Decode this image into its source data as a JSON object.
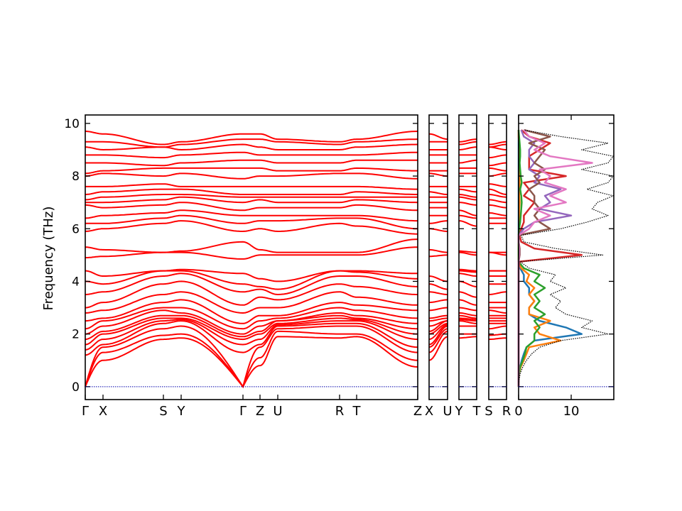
{
  "chart_data": {
    "type": "line",
    "title": "",
    "ylabel": "Frequency (THz)",
    "ylim": [
      -0.49,
      10.32
    ],
    "yticks": [
      0,
      2,
      4,
      6,
      8,
      10
    ],
    "band_color": "#ff0000",
    "zero_line_color": "#0000aa",
    "main_path": {
      "labels": [
        "Γ",
        "X",
        "S",
        "Y",
        "Γ",
        "Z",
        "U",
        "R",
        "T",
        "Z"
      ],
      "distances": [
        0,
        0.25,
        1.1,
        1.35,
        2.22,
        2.46,
        2.71,
        3.58,
        3.82,
        4.68
      ]
    },
    "side_paths": [
      {
        "labels": [
          "X",
          "U"
        ],
        "from_node": 1,
        "to_node": 6
      },
      {
        "labels": [
          "Y",
          "T"
        ],
        "from_node": 3,
        "to_node": 8
      },
      {
        "labels": [
          "S",
          "R"
        ],
        "from_node": 2,
        "to_node": 7
      }
    ],
    "bands": [
      [
        0,
        1.0,
        1.8,
        1.85,
        0,
        0.8,
        1.9,
        1.85,
        1.9,
        0.75
      ],
      [
        0,
        1.3,
        1.95,
        2.0,
        0,
        1.1,
        2.1,
        2.0,
        2.0,
        1.0
      ],
      [
        0,
        1.5,
        2.2,
        2.3,
        0,
        1.5,
        2.2,
        2.3,
        2.3,
        1.3
      ],
      [
        1.2,
        1.6,
        2.4,
        2.5,
        1.3,
        1.6,
        2.3,
        2.4,
        2.4,
        1.5
      ],
      [
        1.4,
        1.8,
        2.5,
        2.55,
        1.6,
        1.8,
        2.35,
        2.5,
        2.5,
        1.8
      ],
      [
        1.6,
        2.0,
        2.6,
        2.6,
        1.8,
        2.0,
        2.4,
        2.6,
        2.55,
        2.0
      ],
      [
        1.8,
        2.1,
        2.7,
        2.7,
        1.9,
        2.1,
        2.5,
        2.7,
        2.6,
        2.2
      ],
      [
        2.0,
        2.3,
        2.9,
        2.8,
        2.0,
        2.3,
        2.5,
        2.8,
        2.7,
        2.4
      ],
      [
        2.2,
        2.5,
        3.0,
        3.0,
        2.2,
        2.5,
        2.6,
        3.0,
        2.9,
        2.6
      ],
      [
        2.5,
        2.6,
        3.2,
        3.3,
        2.4,
        2.7,
        2.7,
        3.2,
        3.1,
        2.9
      ],
      [
        2.8,
        2.9,
        3.5,
        3.6,
        2.8,
        3.0,
        3.0,
        3.6,
        3.4,
        3.1
      ],
      [
        3.0,
        3.2,
        3.9,
        4.0,
        3.1,
        3.4,
        3.3,
        3.9,
        3.8,
        3.5
      ],
      [
        3.5,
        3.6,
        4.2,
        4.3,
        3.6,
        3.7,
        3.5,
        4.2,
        4.2,
        3.8
      ],
      [
        4.0,
        3.9,
        4.4,
        4.4,
        3.9,
        3.8,
        3.7,
        4.4,
        4.35,
        4.1
      ],
      [
        4.4,
        4.2,
        4.4,
        4.45,
        4.3,
        4.1,
        4.0,
        4.4,
        4.4,
        4.3
      ],
      [
        4.9,
        4.95,
        5.1,
        5.1,
        4.85,
        5.0,
        5.0,
        5.0,
        5.0,
        5.3
      ],
      [
        5.3,
        5.2,
        5.1,
        5.15,
        5.5,
        5.2,
        5.1,
        5.1,
        5.1,
        5.6
      ],
      [
        5.9,
        6.0,
        6.2,
        6.3,
        5.9,
        6.0,
        5.9,
        6.2,
        6.1,
        5.8
      ],
      [
        6.2,
        6.2,
        6.4,
        6.5,
        6.2,
        6.3,
        6.3,
        6.4,
        6.4,
        6.0
      ],
      [
        6.4,
        6.5,
        6.6,
        6.7,
        6.5,
        6.5,
        6.5,
        6.5,
        6.5,
        6.3
      ],
      [
        6.9,
        6.8,
        6.9,
        7.0,
        6.7,
        6.8,
        6.8,
        6.8,
        6.9,
        6.7
      ],
      [
        7.0,
        7.0,
        7.1,
        7.2,
        7.0,
        7.1,
        7.0,
        7.0,
        7.1,
        7.0
      ],
      [
        7.1,
        7.2,
        7.3,
        7.3,
        7.2,
        7.2,
        7.2,
        7.2,
        7.2,
        7.2
      ],
      [
        7.3,
        7.4,
        7.5,
        7.5,
        7.3,
        7.3,
        7.3,
        7.3,
        7.4,
        7.3
      ],
      [
        7.6,
        7.6,
        7.7,
        7.6,
        7.6,
        7.6,
        7.6,
        7.6,
        7.6,
        7.5
      ],
      [
        8.0,
        8.1,
        8.0,
        8.1,
        7.9,
        8.0,
        8.0,
        8.1,
        8.1,
        7.9
      ],
      [
        8.1,
        8.2,
        8.3,
        8.3,
        8.3,
        8.3,
        8.2,
        8.2,
        8.3,
        8.2
      ],
      [
        8.5,
        8.5,
        8.4,
        8.5,
        8.6,
        8.6,
        8.5,
        8.5,
        8.6,
        8.6
      ],
      [
        8.8,
        8.8,
        8.7,
        8.8,
        8.9,
        8.8,
        8.8,
        8.8,
        8.8,
        8.9
      ],
      [
        9.1,
        9.0,
        9.1,
        9.0,
        9.2,
        9.1,
        9.0,
        9.0,
        9.1,
        9.2
      ],
      [
        9.3,
        9.3,
        9.1,
        9.2,
        9.4,
        9.4,
        9.3,
        9.2,
        9.3,
        9.4
      ],
      [
        9.7,
        9.6,
        9.2,
        9.3,
        9.6,
        9.6,
        9.4,
        9.3,
        9.4,
        9.7
      ]
    ],
    "dos": {
      "xlim": [
        0,
        18.1
      ],
      "xticks": [
        0,
        10
      ],
      "freq_start": 0,
      "freq_step": 0.25,
      "total": {
        "color": "#000000",
        "values": [
          0,
          0.1,
          0.3,
          0.8,
          1.5,
          2.5,
          4,
          8,
          17,
          12,
          14,
          9,
          7,
          8,
          6,
          9,
          6,
          7,
          2,
          0.3,
          16,
          7,
          1,
          0.5,
          8,
          13,
          17,
          14,
          15,
          18,
          13,
          17,
          18,
          12,
          17,
          18,
          12,
          17,
          8,
          1
        ]
      },
      "partials": [
        {
          "color": "#1f77b4",
          "values": [
            0,
            0,
            0.1,
            0.3,
            0.6,
            1,
            1.5,
            3,
            12,
            9,
            4,
            2,
            2,
            3,
            2,
            2,
            1,
            1,
            0.3,
            0,
            0,
            0,
            0,
            0,
            0,
            0,
            0,
            0,
            0,
            0,
            0,
            0,
            0,
            0,
            0,
            0,
            0,
            0,
            0,
            0
          ]
        },
        {
          "color": "#ff7f0e",
          "values": [
            0,
            0,
            0.1,
            0.4,
            1,
            1.5,
            2,
            8,
            4,
            3,
            6,
            2,
            2,
            3,
            2,
            3,
            1.5,
            2,
            0.5,
            0,
            0,
            0,
            0,
            0,
            0.1,
            0.1,
            0.1,
            0.1,
            0.2,
            0.1,
            0.2,
            0.2,
            0.1,
            0.1,
            0.1,
            0.1,
            0.1,
            0.1,
            0,
            0
          ]
        },
        {
          "color": "#2ca02c",
          "values": [
            0,
            0,
            0.1,
            0.3,
            0.8,
            1.2,
            1.5,
            3,
            3,
            4,
            3,
            5,
            3,
            4,
            3,
            5,
            3,
            4,
            1,
            0,
            0,
            0,
            0,
            0,
            0.1,
            0.3,
            0.4,
            0.5,
            0.6,
            0.5,
            0.3,
            0.6,
            0.4,
            0.3,
            0.2,
            0.3,
            0.3,
            0.2,
            0.1,
            0
          ]
        },
        {
          "color": "#d62728",
          "values": [
            0,
            0,
            0,
            0,
            0,
            0,
            0,
            0,
            0,
            0,
            0,
            0,
            0,
            0,
            0,
            0,
            0,
            0,
            0,
            0.2,
            12,
            3,
            0.5,
            0.2,
            0.5,
            1,
            1,
            2,
            3,
            1,
            2,
            1,
            9,
            2,
            2,
            2,
            4,
            6,
            2,
            0.5
          ]
        },
        {
          "color": "#9467bd",
          "values": [
            0,
            0,
            0,
            0,
            0,
            0,
            0,
            0,
            0,
            0,
            0,
            0,
            0,
            0,
            0,
            0,
            0,
            0,
            0,
            0,
            0.2,
            0.2,
            0,
            0,
            1,
            3,
            10,
            4,
            6,
            5,
            8,
            3,
            4,
            2,
            3,
            2,
            2,
            3,
            1,
            0.5
          ]
        },
        {
          "color": "#8c564b",
          "values": [
            0,
            0,
            0,
            0,
            0,
            0,
            0,
            0,
            0,
            0,
            0,
            0,
            0,
            0,
            0,
            0,
            0,
            0,
            0,
            0,
            0.2,
            0.2,
            0,
            0,
            6,
            4,
            3,
            4,
            3,
            3,
            2,
            4,
            3,
            5,
            3,
            4,
            5,
            2,
            6,
            1
          ]
        },
        {
          "color": "#e377c2",
          "values": [
            0,
            0,
            0,
            0,
            0,
            0,
            0,
            0,
            0,
            0,
            0,
            0,
            0,
            0,
            0,
            0,
            0,
            0,
            0,
            0,
            0.1,
            0.1,
            0,
            0,
            2,
            3,
            6,
            3,
            9,
            6,
            9,
            5,
            6,
            4,
            14,
            6,
            3,
            5,
            2,
            1
          ]
        }
      ]
    }
  }
}
